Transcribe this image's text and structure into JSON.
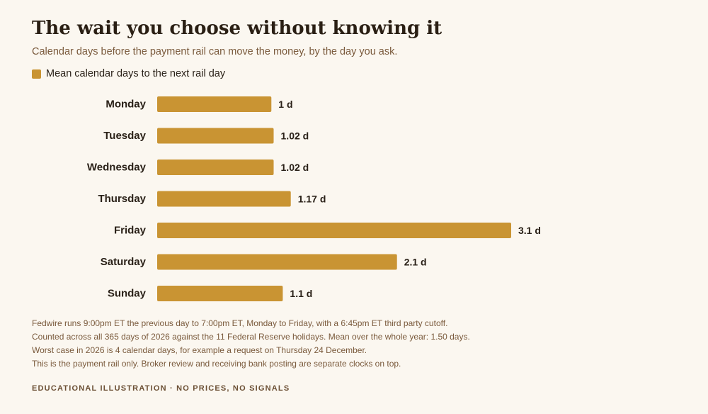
{
  "title": "The wait you choose without knowing it",
  "subtitle": "Calendar days before the payment rail can move the money, by the day you ask.",
  "colors": {
    "bar": "#c99433",
    "background": "#fbf7f0",
    "label_text": "#2a2118",
    "muted_text": "#7a5a3c"
  },
  "chart_data": {
    "type": "bar",
    "orientation": "horizontal",
    "categories": [
      "Monday",
      "Tuesday",
      "Wednesday",
      "Thursday",
      "Friday",
      "Saturday",
      "Sunday"
    ],
    "series": [
      {
        "name": "Mean calendar days to the next rail day",
        "values": [
          1,
          1.02,
          1.02,
          1.17,
          3.1,
          2.1,
          1.1
        ]
      }
    ],
    "value_labels": [
      "1 d",
      "1.02 d",
      "1.02 d",
      "1.17 d",
      "3.1 d",
      "2.1 d",
      "1.1 d"
    ],
    "xlim": [
      0,
      3.1
    ],
    "grid": false,
    "legend_position": "top-left",
    "xlabel": "",
    "ylabel": ""
  },
  "notes": [
    "Fedwire runs 9:00pm ET the previous day to 7:00pm ET, Monday to Friday, with a 6:45pm ET third party cutoff.",
    "Counted across all 365 days of 2026 against the 11 Federal Reserve holidays. Mean over the whole year: 1.50 days.",
    "Worst case in 2026 is 4 calendar days, for example a request on Thursday 24 December.",
    "This is the payment rail only. Broker review and receiving bank posting are separate clocks on top."
  ],
  "footer": "EDUCATIONAL ILLUSTRATION · NO PRICES, NO SIGNALS"
}
